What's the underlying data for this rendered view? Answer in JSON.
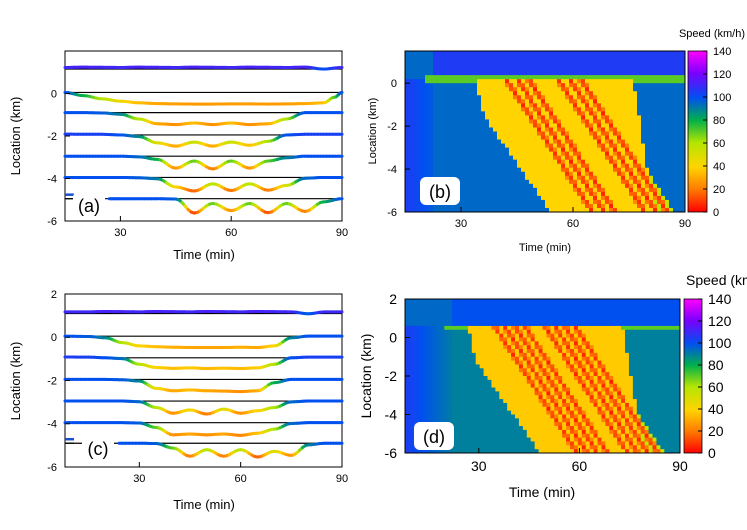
{
  "chart_data": [
    {
      "panel": "(a)",
      "type": "line",
      "xlabel": "Time (min)",
      "ylabel": "Location (km)",
      "xlim": [
        15,
        90
      ],
      "ylim": [
        -6,
        2
      ],
      "xticks": [
        30,
        60,
        90
      ],
      "yticks": [
        0,
        -2,
        -4,
        -6
      ],
      "series": [
        {
          "offset": 1.15,
          "x": [
            15,
            20,
            25,
            30,
            35,
            40,
            45,
            50,
            55,
            60,
            65,
            70,
            75,
            80,
            85,
            90
          ],
          "speed": [
            110,
            112,
            111,
            110,
            112,
            111,
            110,
            112,
            111,
            110,
            112,
            111,
            110,
            112,
            100,
            110
          ]
        },
        {
          "offset": 0.05,
          "x": [
            15,
            20,
            25,
            30,
            35,
            40,
            45,
            50,
            55,
            60,
            65,
            70,
            75,
            80,
            85,
            88,
            90
          ],
          "speed": [
            100,
            80,
            60,
            45,
            35,
            30,
            28,
            27,
            27,
            28,
            28,
            27,
            28,
            30,
            35,
            70,
            100
          ]
        },
        {
          "offset": -0.9,
          "x": [
            15,
            20,
            25,
            30,
            35,
            40,
            45,
            50,
            55,
            60,
            65,
            70,
            75,
            80,
            85,
            90
          ],
          "speed": [
            100,
            100,
            98,
            90,
            60,
            30,
            25,
            35,
            25,
            35,
            25,
            30,
            60,
            100,
            100,
            100
          ]
        },
        {
          "offset": -1.95,
          "x": [
            15,
            20,
            25,
            30,
            35,
            40,
            45,
            50,
            55,
            60,
            65,
            70,
            75,
            80,
            85,
            90
          ],
          "speed": [
            105,
            104,
            104,
            100,
            90,
            50,
            30,
            55,
            30,
            55,
            35,
            60,
            100,
            104,
            104,
            104
          ]
        },
        {
          "offset": -2.95,
          "x": [
            15,
            20,
            25,
            30,
            35,
            40,
            45,
            50,
            55,
            60,
            65,
            70,
            75,
            80,
            85,
            90
          ],
          "speed": [
            100,
            100,
            100,
            100,
            96,
            80,
            25,
            70,
            20,
            70,
            25,
            70,
            90,
            100,
            100,
            100
          ]
        },
        {
          "offset": -3.95,
          "x": [
            15,
            20,
            25,
            30,
            35,
            40,
            45,
            50,
            55,
            60,
            65,
            70,
            75,
            80,
            85,
            90
          ],
          "speed": [
            100,
            100,
            100,
            100,
            98,
            92,
            40,
            15,
            60,
            18,
            60,
            20,
            50,
            95,
            100,
            100
          ]
        },
        {
          "offset": -4.95,
          "x": [
            27,
            30,
            35,
            40,
            45,
            50,
            55,
            60,
            65,
            70,
            75,
            80,
            85,
            90
          ],
          "speed": [
            100,
            100,
            100,
            100,
            98,
            10,
            70,
            25,
            70,
            12,
            70,
            20,
            80,
            100
          ]
        }
      ]
    },
    {
      "panel": "(b)",
      "type": "heatmap",
      "xlabel": "Time (min)",
      "ylabel": "Location (km)",
      "colorbar_label": "Speed (km/h)",
      "xlim": [
        15,
        90
      ],
      "ylim": [
        -6,
        1.5
      ],
      "xticks": [
        30,
        60,
        90
      ],
      "yticks": [
        0,
        -2,
        -4,
        -6
      ],
      "cbar_ticks": [
        0,
        20,
        40,
        60,
        80,
        100,
        120,
        140
      ],
      "bottleneck_km": 0.2,
      "free_speed_upstream": 95,
      "free_speed_downstream": 105,
      "congestion_speed": 40,
      "wave_speed_kmh": -16,
      "stop_waves_start_min": [
        42,
        45,
        48,
        56,
        59,
        62
      ]
    },
    {
      "panel": "(c)",
      "type": "line",
      "xlabel": "Time (min)",
      "ylabel": "Location (km)",
      "xlim": [
        8,
        90
      ],
      "ylim": [
        -6,
        2
      ],
      "xticks": [
        30,
        60,
        90
      ],
      "yticks": [
        2,
        0,
        -2,
        -4,
        -6
      ],
      "series": [
        {
          "offset": 1.1,
          "x": [
            8,
            15,
            20,
            25,
            30,
            35,
            40,
            45,
            50,
            55,
            60,
            65,
            70,
            75,
            80,
            85,
            90
          ],
          "speed": [
            110,
            110,
            112,
            111,
            110,
            112,
            111,
            110,
            112,
            111,
            110,
            112,
            111,
            110,
            98,
            110,
            110
          ]
        },
        {
          "offset": 0.05,
          "x": [
            8,
            15,
            20,
            25,
            30,
            35,
            40,
            45,
            50,
            55,
            60,
            65,
            70,
            75,
            80,
            85,
            90
          ],
          "speed": [
            100,
            98,
            90,
            60,
            40,
            35,
            32,
            30,
            30,
            30,
            32,
            30,
            40,
            90,
            100,
            100,
            100
          ]
        },
        {
          "offset": -0.95,
          "x": [
            8,
            15,
            20,
            25,
            30,
            35,
            40,
            45,
            50,
            55,
            60,
            65,
            70,
            75,
            80,
            85,
            90
          ],
          "speed": [
            105,
            104,
            100,
            95,
            60,
            40,
            35,
            38,
            34,
            36,
            34,
            38,
            60,
            100,
            104,
            104,
            104
          ]
        },
        {
          "offset": -1.95,
          "x": [
            8,
            15,
            20,
            25,
            30,
            35,
            40,
            45,
            50,
            55,
            60,
            65,
            70,
            75,
            80,
            85,
            90
          ],
          "speed": [
            100,
            100,
            100,
            98,
            90,
            45,
            30,
            35,
            30,
            28,
            25,
            30,
            80,
            100,
            100,
            100,
            100
          ]
        },
        {
          "offset": -2.95,
          "x": [
            8,
            15,
            20,
            25,
            30,
            35,
            40,
            45,
            50,
            55,
            60,
            65,
            70,
            75,
            80,
            85,
            90
          ],
          "speed": [
            100,
            100,
            100,
            100,
            96,
            60,
            25,
            45,
            20,
            50,
            25,
            40,
            60,
            95,
            100,
            100,
            100
          ]
        },
        {
          "offset": -3.95,
          "x": [
            8,
            15,
            20,
            25,
            30,
            35,
            40,
            45,
            50,
            55,
            60,
            65,
            70,
            75,
            80,
            85,
            90
          ],
          "speed": [
            100,
            100,
            100,
            100,
            98,
            70,
            25,
            30,
            25,
            30,
            22,
            35,
            60,
            95,
            100,
            100,
            100
          ]
        },
        {
          "offset": -4.9,
          "x": [
            24,
            30,
            35,
            40,
            45,
            50,
            55,
            60,
            65,
            70,
            75,
            80,
            85,
            90
          ],
          "speed": [
            100,
            100,
            98,
            70,
            20,
            60,
            20,
            60,
            15,
            50,
            25,
            90,
            100,
            100
          ]
        }
      ]
    },
    {
      "panel": "(d)",
      "type": "heatmap",
      "xlabel": "Time (min)",
      "ylabel": "Location (km)",
      "colorbar_label": "Speed (km/h)",
      "xlim": [
        8,
        90
      ],
      "ylim": [
        -6,
        2
      ],
      "xticks": [
        30,
        60,
        90
      ],
      "yticks": [
        2,
        0,
        -2,
        -4,
        -6
      ],
      "cbar_ticks": [
        0,
        20,
        40,
        60,
        80,
        100,
        120,
        140
      ],
      "bottleneck_km": 0.5,
      "free_speed_upstream": 90,
      "free_speed_downstream": 100,
      "congestion_speed": 38,
      "wave_speed_kmh": -16,
      "stop_waves_start_min": [
        35,
        38,
        41,
        44,
        50,
        53,
        56,
        59
      ]
    }
  ]
}
